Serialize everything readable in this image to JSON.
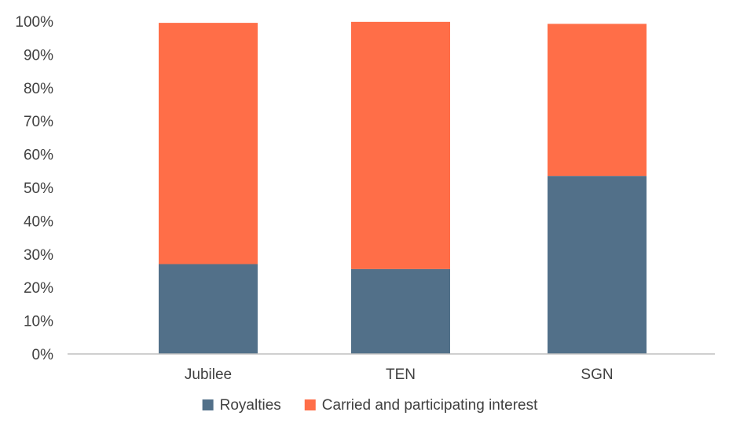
{
  "chart_data": {
    "type": "bar",
    "stacked": true,
    "categories": [
      "Jubilee",
      "TEN",
      "SGN"
    ],
    "series": [
      {
        "name": "Royalties",
        "color": "#527089",
        "values": [
          27,
          25.5,
          53.5
        ]
      },
      {
        "name": "Carried and participating interest",
        "color": "#ff6e48",
        "values": [
          72.5,
          74.3,
          45.7
        ]
      }
    ],
    "ylim": [
      0,
      100
    ],
    "yticks": [
      "0%",
      "10%",
      "20%",
      "30%",
      "40%",
      "50%",
      "60%",
      "70%",
      "80%",
      "90%",
      "100%"
    ],
    "xlabel": "",
    "ylabel": "",
    "title": "",
    "grid": false,
    "legend_position": "bottom"
  }
}
